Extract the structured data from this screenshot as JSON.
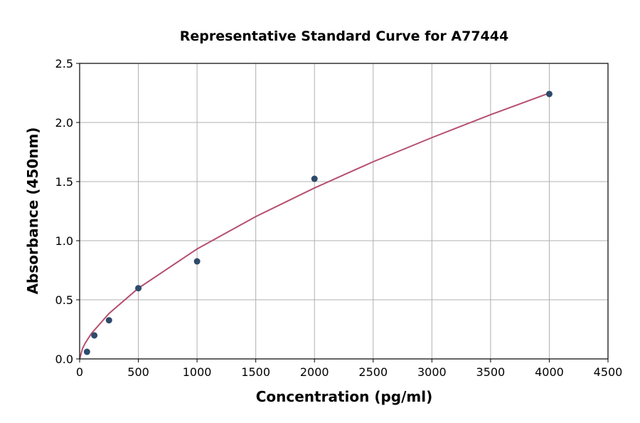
{
  "chart_data": {
    "type": "scatter",
    "title": "Representative Standard Curve for A77444",
    "xlabel": "Concentration (pg/ml)",
    "ylabel": "Absorbance (450nm)",
    "xlim": [
      0,
      4500
    ],
    "ylim": [
      0,
      2.5
    ],
    "xticks": [
      0,
      500,
      1000,
      1500,
      2000,
      2500,
      3000,
      3500,
      4000,
      4500
    ],
    "yticks": [
      0.0,
      0.5,
      1.0,
      1.5,
      2.0,
      2.5
    ],
    "grid": true,
    "points": {
      "x": [
        62.5,
        125,
        250,
        500,
        1000,
        2000,
        4000
      ],
      "y": [
        0.06,
        0.199,
        0.327,
        0.598,
        0.825,
        1.524,
        2.241
      ]
    },
    "fit_curve": {
      "x": [
        0,
        25,
        50,
        100,
        250,
        500,
        1000,
        1500,
        2000,
        2500,
        3000,
        3500,
        4000
      ],
      "y": [
        0,
        0.089,
        0.138,
        0.215,
        0.384,
        0.598,
        0.93,
        1.204,
        1.446,
        1.668,
        1.872,
        2.066,
        2.249
      ]
    },
    "colors": {
      "points": "#2e4a6b",
      "curve": "#b5506f",
      "grid": "#b0b0b0"
    }
  }
}
